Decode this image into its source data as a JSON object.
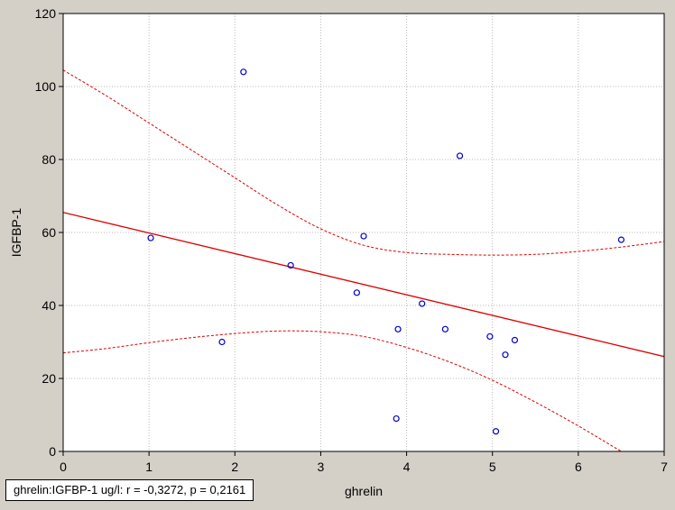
{
  "chart_data": {
    "type": "scatter",
    "title": "",
    "xlabel": "ghrelin",
    "ylabel": "IGFBP-1",
    "xlim": [
      0,
      7
    ],
    "ylim": [
      0,
      120
    ],
    "x_ticks": [
      0,
      1,
      2,
      3,
      4,
      5,
      6,
      7
    ],
    "y_ticks": [
      0,
      20,
      40,
      60,
      80,
      100,
      120
    ],
    "grid": true,
    "points": [
      {
        "x": 1.02,
        "y": 58.5
      },
      {
        "x": 1.85,
        "y": 30
      },
      {
        "x": 2.1,
        "y": 104
      },
      {
        "x": 2.65,
        "y": 51
      },
      {
        "x": 3.42,
        "y": 43.5
      },
      {
        "x": 3.5,
        "y": 59
      },
      {
        "x": 3.88,
        "y": 9
      },
      {
        "x": 3.9,
        "y": 33.5
      },
      {
        "x": 4.18,
        "y": 40.5
      },
      {
        "x": 4.45,
        "y": 33.5
      },
      {
        "x": 4.62,
        "y": 81
      },
      {
        "x": 4.97,
        "y": 31.5
      },
      {
        "x": 5.04,
        "y": 5.5
      },
      {
        "x": 5.15,
        "y": 26.5
      },
      {
        "x": 5.26,
        "y": 30.5
      },
      {
        "x": 6.5,
        "y": 58
      }
    ],
    "regression_line": {
      "x": [
        0,
        7
      ],
      "y": [
        65.5,
        26
      ]
    },
    "confidence_upper": {
      "x": [
        0,
        0.5,
        1,
        1.5,
        2,
        2.5,
        3,
        3.5,
        4,
        4.5,
        5,
        5.5,
        6,
        6.5,
        7
      ],
      "y": [
        104.5,
        97.5,
        90,
        82.5,
        75,
        67.5,
        61,
        56.5,
        54.5,
        54,
        53.8,
        54,
        54.8,
        56,
        57.5
      ]
    },
    "confidence_lower": {
      "x": [
        0,
        0.5,
        1,
        1.5,
        2,
        2.5,
        3,
        3.5,
        4,
        4.5,
        5,
        5.5,
        6,
        6.5,
        7
      ],
      "y": [
        27,
        28.2,
        29.8,
        31.2,
        32.3,
        33,
        32.8,
        31.5,
        28.5,
        24.5,
        19.5,
        13.5,
        7,
        0,
        -7
      ]
    },
    "annotation": "ghrelin:IGFBP-1 ug/l:   r = -0,3272, p = 0,2161",
    "colors": {
      "point": "#0000cc",
      "regression": "#dd0000",
      "confidence": "#dd0000",
      "plot_background": "#ffffff",
      "outer_background": "#d4d0c8",
      "grid": "#b8b8b8"
    }
  }
}
